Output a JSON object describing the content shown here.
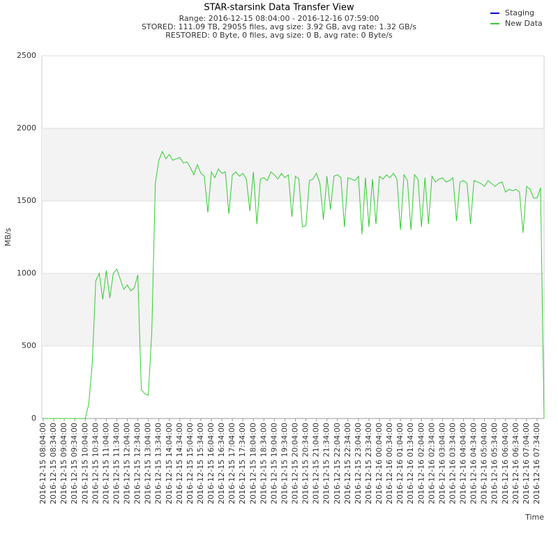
{
  "chart_data": {
    "type": "line",
    "title": "STAR-starsink Data Transfer View",
    "subtitle": [
      "Range: 2016-12-15 08:04:00 - 2016-12-16 07:59:00",
      "STORED: 111.09 TB, 29055 files, avg size: 3.92 GB, avg rate: 1.32 GB/s",
      "RESTORED: 0 Byte, 0 files, avg size: 0 B, avg rate: 0 Byte/s"
    ],
    "ylabel": "MB/s",
    "xlabel": "Time",
    "ylim": [
      0,
      2500
    ],
    "yticks": [
      0,
      500,
      1000,
      1500,
      2000,
      2500
    ],
    "categories": [
      "2016-12-15 08:04:00",
      null,
      null,
      "2016-12-15 08:34:00",
      null,
      null,
      "2016-12-15 09:04:00",
      null,
      null,
      "2016-12-15 09:34:00",
      null,
      null,
      "2016-12-15 10:04:00",
      null,
      null,
      "2016-12-15 10:34:00",
      null,
      null,
      "2016-12-15 11:04:00",
      null,
      null,
      "2016-12-15 11:34:00",
      null,
      null,
      "2016-12-15 12:04:00",
      null,
      null,
      "2016-12-15 12:34:00",
      null,
      null,
      "2016-12-15 13:04:00",
      null,
      null,
      "2016-12-15 13:34:00",
      null,
      null,
      "2016-12-15 14:04:00",
      null,
      null,
      "2016-12-15 14:34:00",
      null,
      null,
      "2016-12-15 15:04:00",
      null,
      null,
      "2016-12-15 15:34:00",
      null,
      null,
      "2016-12-15 16:04:00",
      null,
      null,
      "2016-12-15 16:34:00",
      null,
      null,
      "2016-12-15 17:04:00",
      null,
      null,
      "2016-12-15 17:34:00",
      null,
      null,
      "2016-12-15 18:04:00",
      null,
      null,
      "2016-12-15 18:34:00",
      null,
      null,
      "2016-12-15 19:04:00",
      null,
      null,
      "2016-12-15 19:34:00",
      null,
      null,
      "2016-12-15 20:04:00",
      null,
      null,
      "2016-12-15 20:34:00",
      null,
      null,
      "2016-12-15 21:04:00",
      null,
      null,
      "2016-12-15 21:34:00",
      null,
      null,
      "2016-12-15 22:04:00",
      null,
      null,
      "2016-12-15 22:34:00",
      null,
      null,
      "2016-12-15 23:04:00",
      null,
      null,
      "2016-12-15 23:34:00",
      null,
      null,
      "2016-12-16 00:04:00",
      null,
      null,
      "2016-12-16 00:34:00",
      null,
      null,
      "2016-12-16 01:04:00",
      null,
      null,
      "2016-12-16 01:34:00",
      null,
      null,
      "2016-12-16 02:04:00",
      null,
      null,
      "2016-12-16 02:34:00",
      null,
      null,
      "2016-12-16 03:04:00",
      null,
      null,
      "2016-12-16 03:34:00",
      null,
      null,
      "2016-12-16 04:04:00",
      null,
      null,
      "2016-12-16 04:34:00",
      null,
      null,
      "2016-12-16 05:04:00",
      null,
      null,
      "2016-12-16 05:34:00",
      null,
      null,
      "2016-12-16 06:04:00",
      null,
      null,
      "2016-12-16 06:34:00",
      null,
      null,
      "2016-12-16 07:04:00",
      null,
      null,
      "2016-12-16 07:34:00",
      null,
      null
    ],
    "series": [
      {
        "name": "Staging",
        "color": "#0000cc"
      },
      {
        "name": "New Data",
        "color": "#33cc33",
        "values": [
          0,
          0,
          0,
          0,
          0,
          0,
          0,
          0,
          0,
          0,
          0,
          0,
          0,
          100,
          380,
          950,
          1000,
          820,
          1020,
          830,
          1000,
          1030,
          960,
          890,
          920,
          880,
          900,
          990,
          200,
          170,
          160,
          600,
          1620,
          1780,
          1840,
          1790,
          1820,
          1780,
          1790,
          1800,
          1760,
          1770,
          1730,
          1680,
          1750,
          1690,
          1670,
          1420,
          1700,
          1660,
          1720,
          1690,
          1700,
          1410,
          1680,
          1700,
          1670,
          1690,
          1650,
          1430,
          1700,
          1340,
          1650,
          1660,
          1640,
          1700,
          1680,
          1650,
          1690,
          1660,
          1680,
          1390,
          1670,
          1650,
          1320,
          1330,
          1640,
          1650,
          1690,
          1620,
          1370,
          1670,
          1440,
          1670,
          1680,
          1660,
          1320,
          1660,
          1650,
          1640,
          1670,
          1270,
          1660,
          1320,
          1650,
          1340,
          1670,
          1650,
          1680,
          1660,
          1690,
          1650,
          1300,
          1680,
          1640,
          1300,
          1680,
          1650,
          1320,
          1660,
          1340,
          1670,
          1630,
          1650,
          1660,
          1630,
          1640,
          1660,
          1360,
          1630,
          1640,
          1620,
          1340,
          1640,
          1630,
          1620,
          1600,
          1640,
          1620,
          1600,
          1620,
          1630,
          1560,
          1580,
          1570,
          1580,
          1560,
          1280,
          1600,
          1580,
          1520,
          1520,
          1590,
          0
        ]
      }
    ],
    "grid": true
  }
}
